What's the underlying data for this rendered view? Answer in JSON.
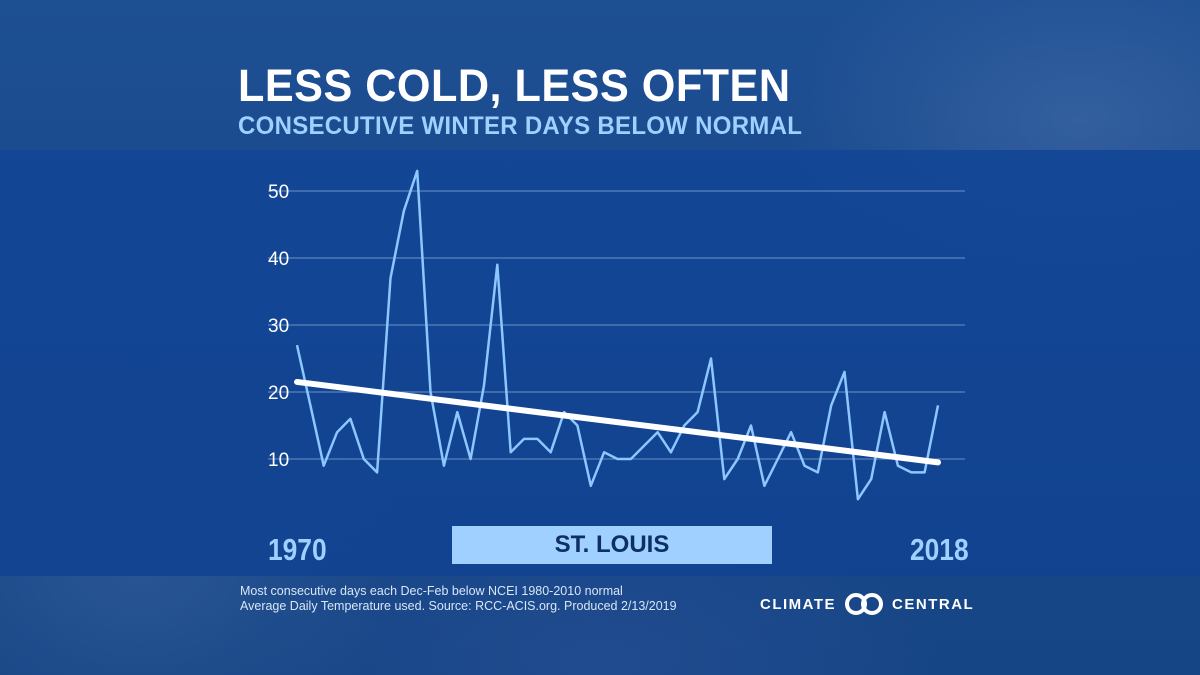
{
  "header": {
    "title": "LESS COLD, LESS OFTEN",
    "subtitle": "CONSECUTIVE WINTER DAYS BELOW NORMAL"
  },
  "chart_data": {
    "type": "line",
    "title": "LESS COLD, LESS OFTEN",
    "subtitle": "CONSECUTIVE WINTER DAYS BELOW NORMAL",
    "location": "ST. LOUIS",
    "x_start_label": "1970",
    "x_end_label": "2018",
    "x": [
      1970,
      1971,
      1972,
      1973,
      1974,
      1975,
      1976,
      1977,
      1978,
      1979,
      1980,
      1981,
      1982,
      1983,
      1984,
      1985,
      1986,
      1987,
      1988,
      1989,
      1990,
      1991,
      1992,
      1993,
      1994,
      1995,
      1996,
      1997,
      1998,
      1999,
      2000,
      2001,
      2002,
      2003,
      2004,
      2005,
      2006,
      2007,
      2008,
      2009,
      2010,
      2011,
      2012,
      2013,
      2014,
      2015,
      2016,
      2017,
      2018
    ],
    "values": [
      27,
      18,
      9,
      14,
      16,
      10,
      8,
      37,
      47,
      53,
      20,
      9,
      17,
      10,
      21,
      39,
      11,
      13,
      13,
      11,
      17,
      15,
      6,
      11,
      10,
      10,
      12,
      14,
      11,
      15,
      17,
      25,
      7,
      10,
      15,
      6,
      10,
      14,
      9,
      8,
      18,
      23,
      4,
      7,
      17,
      9,
      8,
      8,
      18
    ],
    "trend": {
      "start": [
        1970,
        21.5
      ],
      "end": [
        2018,
        9.5
      ]
    },
    "yticks": [
      10,
      20,
      30,
      40,
      50
    ],
    "ylim": [
      0,
      55
    ],
    "xlim": [
      1970,
      2018
    ],
    "grid": true,
    "colors": {
      "series": "#8cc7ff",
      "trend": "#ffffff",
      "grid": "#a8c4e6"
    }
  },
  "footer": {
    "note_line1": "Most consecutive days each Dec-Feb below NCEI 1980-2010 normal",
    "note_line2": "Average Daily Temperature used. Source: RCC-ACIS.org. Produced 2/13/2019",
    "logo_left": "CLIMATE",
    "logo_right": "CENTRAL"
  }
}
